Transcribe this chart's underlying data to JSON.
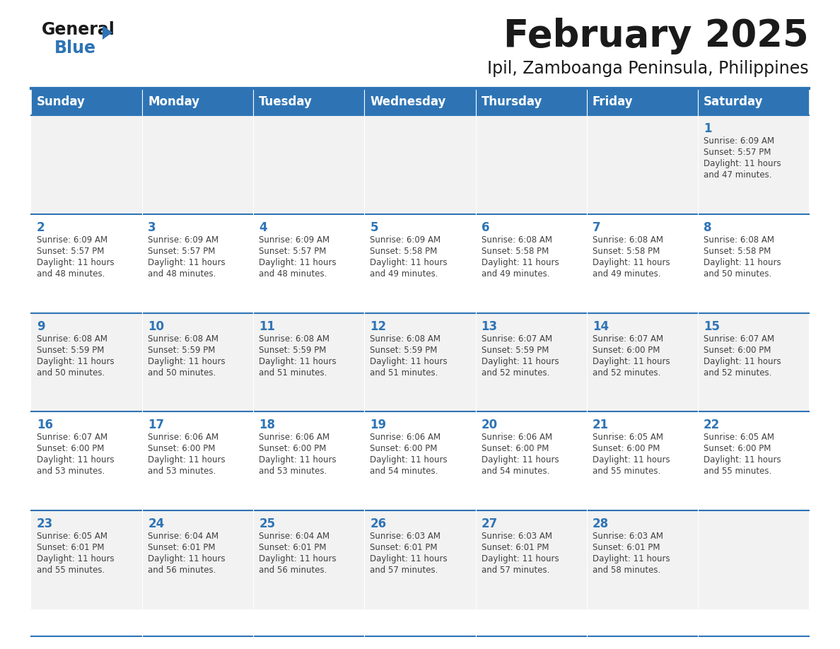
{
  "title": "February 2025",
  "subtitle": "Ipil, Zamboanga Peninsula, Philippines",
  "header_bg": "#2E74B5",
  "header_text_color": "#FFFFFF",
  "row_bg_even": "#F2F2F2",
  "row_bg_odd": "#FFFFFF",
  "grid_line_color": "#2E74B5",
  "day_number_color": "#2E74B5",
  "cell_text_color": "#404040",
  "title_color": "#1a1a1a",
  "subtitle_color": "#1a1a1a",
  "day_headers": [
    "Sunday",
    "Monday",
    "Tuesday",
    "Wednesday",
    "Thursday",
    "Friday",
    "Saturday"
  ],
  "calendar_data": [
    [
      null,
      null,
      null,
      null,
      null,
      null,
      {
        "day": 1,
        "sunrise": "6:09 AM",
        "sunset": "5:57 PM",
        "daylight": "11 hours and 47 minutes."
      }
    ],
    [
      {
        "day": 2,
        "sunrise": "6:09 AM",
        "sunset": "5:57 PM",
        "daylight": "11 hours and 48 minutes."
      },
      {
        "day": 3,
        "sunrise": "6:09 AM",
        "sunset": "5:57 PM",
        "daylight": "11 hours and 48 minutes."
      },
      {
        "day": 4,
        "sunrise": "6:09 AM",
        "sunset": "5:57 PM",
        "daylight": "11 hours and 48 minutes."
      },
      {
        "day": 5,
        "sunrise": "6:09 AM",
        "sunset": "5:58 PM",
        "daylight": "11 hours and 49 minutes."
      },
      {
        "day": 6,
        "sunrise": "6:08 AM",
        "sunset": "5:58 PM",
        "daylight": "11 hours and 49 minutes."
      },
      {
        "day": 7,
        "sunrise": "6:08 AM",
        "sunset": "5:58 PM",
        "daylight": "11 hours and 49 minutes."
      },
      {
        "day": 8,
        "sunrise": "6:08 AM",
        "sunset": "5:58 PM",
        "daylight": "11 hours and 50 minutes."
      }
    ],
    [
      {
        "day": 9,
        "sunrise": "6:08 AM",
        "sunset": "5:59 PM",
        "daylight": "11 hours and 50 minutes."
      },
      {
        "day": 10,
        "sunrise": "6:08 AM",
        "sunset": "5:59 PM",
        "daylight": "11 hours and 50 minutes."
      },
      {
        "day": 11,
        "sunrise": "6:08 AM",
        "sunset": "5:59 PM",
        "daylight": "11 hours and 51 minutes."
      },
      {
        "day": 12,
        "sunrise": "6:08 AM",
        "sunset": "5:59 PM",
        "daylight": "11 hours and 51 minutes."
      },
      {
        "day": 13,
        "sunrise": "6:07 AM",
        "sunset": "5:59 PM",
        "daylight": "11 hours and 52 minutes."
      },
      {
        "day": 14,
        "sunrise": "6:07 AM",
        "sunset": "6:00 PM",
        "daylight": "11 hours and 52 minutes."
      },
      {
        "day": 15,
        "sunrise": "6:07 AM",
        "sunset": "6:00 PM",
        "daylight": "11 hours and 52 minutes."
      }
    ],
    [
      {
        "day": 16,
        "sunrise": "6:07 AM",
        "sunset": "6:00 PM",
        "daylight": "11 hours and 53 minutes."
      },
      {
        "day": 17,
        "sunrise": "6:06 AM",
        "sunset": "6:00 PM",
        "daylight": "11 hours and 53 minutes."
      },
      {
        "day": 18,
        "sunrise": "6:06 AM",
        "sunset": "6:00 PM",
        "daylight": "11 hours and 53 minutes."
      },
      {
        "day": 19,
        "sunrise": "6:06 AM",
        "sunset": "6:00 PM",
        "daylight": "11 hours and 54 minutes."
      },
      {
        "day": 20,
        "sunrise": "6:06 AM",
        "sunset": "6:00 PM",
        "daylight": "11 hours and 54 minutes."
      },
      {
        "day": 21,
        "sunrise": "6:05 AM",
        "sunset": "6:00 PM",
        "daylight": "11 hours and 55 minutes."
      },
      {
        "day": 22,
        "sunrise": "6:05 AM",
        "sunset": "6:00 PM",
        "daylight": "11 hours and 55 minutes."
      }
    ],
    [
      {
        "day": 23,
        "sunrise": "6:05 AM",
        "sunset": "6:01 PM",
        "daylight": "11 hours and 55 minutes."
      },
      {
        "day": 24,
        "sunrise": "6:04 AM",
        "sunset": "6:01 PM",
        "daylight": "11 hours and 56 minutes."
      },
      {
        "day": 25,
        "sunrise": "6:04 AM",
        "sunset": "6:01 PM",
        "daylight": "11 hours and 56 minutes."
      },
      {
        "day": 26,
        "sunrise": "6:03 AM",
        "sunset": "6:01 PM",
        "daylight": "11 hours and 57 minutes."
      },
      {
        "day": 27,
        "sunrise": "6:03 AM",
        "sunset": "6:01 PM",
        "daylight": "11 hours and 57 minutes."
      },
      {
        "day": 28,
        "sunrise": "6:03 AM",
        "sunset": "6:01 PM",
        "daylight": "11 hours and 58 minutes."
      },
      null
    ]
  ],
  "logo_general_color": "#1a1a1a",
  "logo_blue_color": "#2E74B5",
  "logo_triangle_color": "#2E74B5",
  "fig_width": 11.88,
  "fig_height": 9.18,
  "dpi": 100
}
